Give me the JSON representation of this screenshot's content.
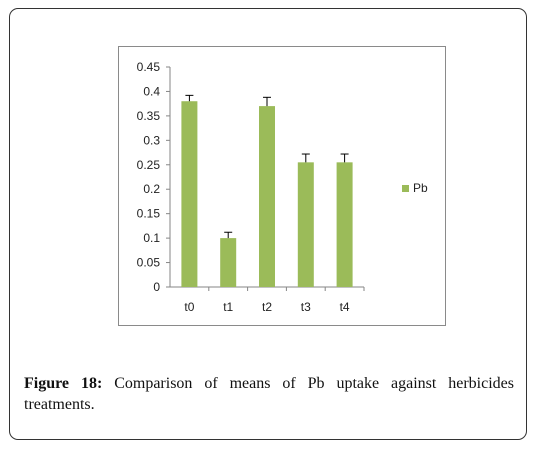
{
  "caption": {
    "label": "Figure 18:",
    "text": "Comparison of means of Pb uptake against herbicides treatments."
  },
  "chart_data": {
    "type": "bar",
    "categories": [
      "t0",
      "t1",
      "t2",
      "t3",
      "t4"
    ],
    "series": [
      {
        "name": "Pb",
        "values": [
          0.38,
          0.1,
          0.37,
          0.255,
          0.255
        ],
        "errors": [
          0.012,
          0.012,
          0.018,
          0.017,
          0.017
        ],
        "color": "#9bbb59"
      }
    ],
    "ylim": [
      0,
      0.45
    ],
    "yticks": [
      "0",
      "0.05",
      "0.1",
      "0.15",
      "0.2",
      "0.25",
      "0.3",
      "0.35",
      "0.4",
      "0.45"
    ],
    "ytick_values": [
      0,
      0.05,
      0.1,
      0.15,
      0.2,
      0.25,
      0.3,
      0.35,
      0.4,
      0.45
    ],
    "grid": false,
    "legend_position": "right"
  }
}
